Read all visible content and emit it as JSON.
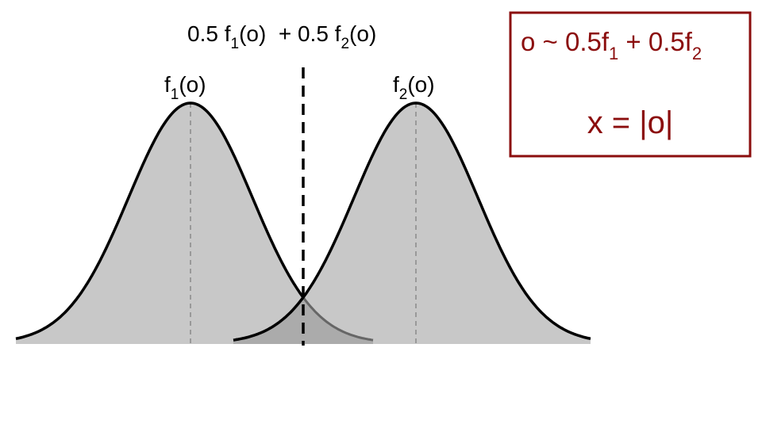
{
  "mixture_label": [
    "0.5 f",
    "1",
    "(o)  + 0.5 f",
    "2",
    "(o)"
  ],
  "curves": [
    {
      "label": [
        "f",
        "1",
        "(o)"
      ]
    },
    {
      "label": [
        "f",
        "2",
        "(o)"
      ]
    }
  ],
  "box": {
    "line1": [
      "o ~ 0.5f",
      "1",
      " + 0.5f",
      "2"
    ],
    "line2": "x = |o|"
  }
}
